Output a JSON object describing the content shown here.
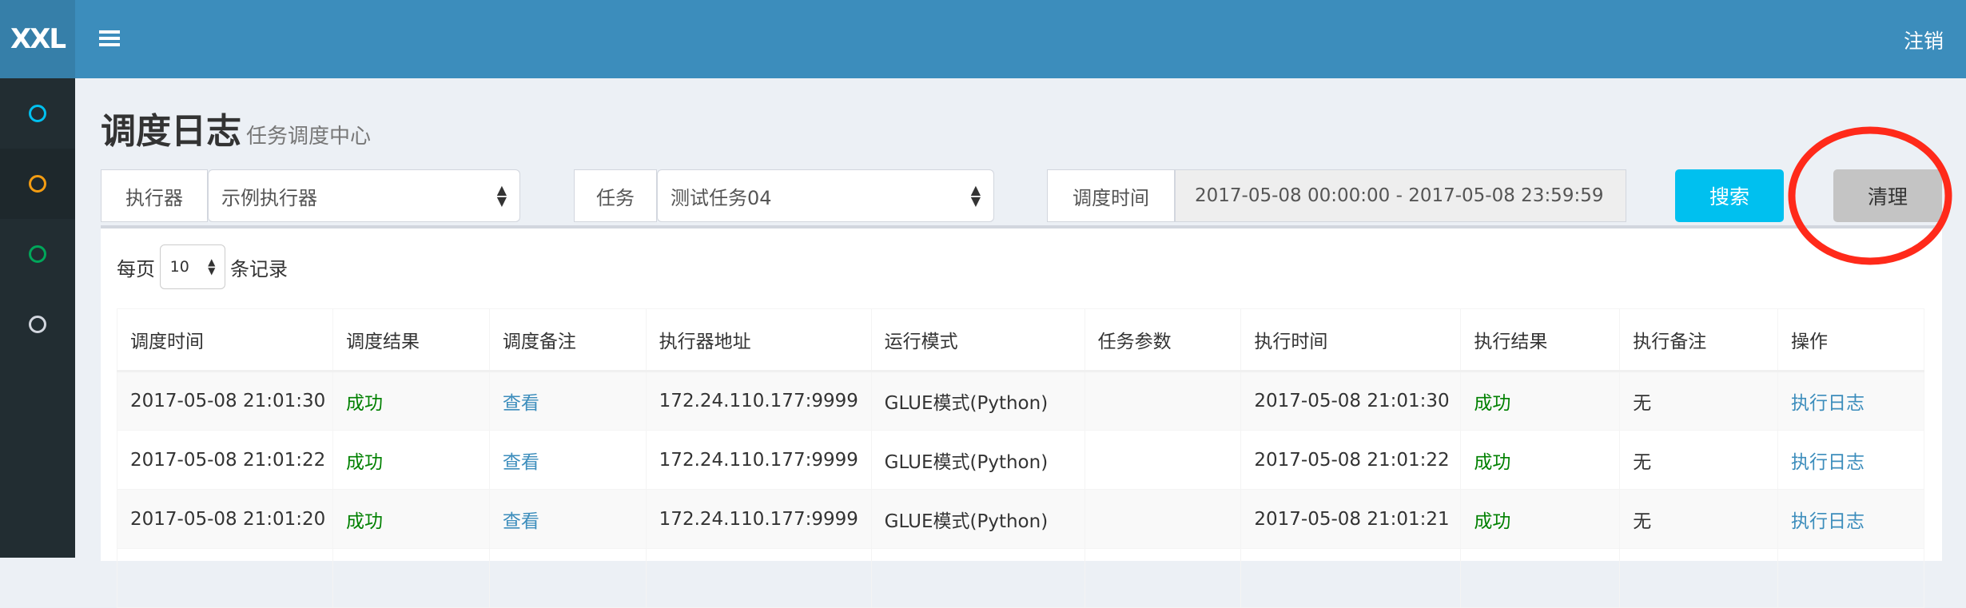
{
  "app": {
    "logo": "XXL",
    "logout": "注销"
  },
  "sidebar": {
    "items": [
      {
        "icon": "circle-icon",
        "color": "#00c0ef"
      },
      {
        "icon": "circle-icon",
        "color": "#f39c12"
      },
      {
        "icon": "circle-icon",
        "color": "#00a65a"
      },
      {
        "icon": "circle-icon",
        "color": "#d2d6de"
      }
    ]
  },
  "page": {
    "title": "调度日志",
    "subtitle": "任务调度中心"
  },
  "filters": {
    "executor_label": "执行器",
    "executor_value": "示例执行器",
    "job_label": "任务",
    "job_value": "测试任务04",
    "time_label": "调度时间",
    "time_value": "2017-05-08 00:00:00 - 2017-05-08 23:59:59",
    "search": "搜索",
    "clear": "清理"
  },
  "page_length": {
    "prefix": "每页",
    "value": "10",
    "suffix": "条记录"
  },
  "table": {
    "columns": [
      "调度时间",
      "调度结果",
      "调度备注",
      "执行器地址",
      "运行模式",
      "任务参数",
      "执行时间",
      "执行结果",
      "执行备注",
      "操作"
    ],
    "rows": [
      [
        "2017-05-08 21:01:30",
        "成功",
        "查看",
        "172.24.110.177:9999",
        "GLUE模式(Python)",
        "",
        "2017-05-08 21:01:30",
        "成功",
        "无",
        "执行日志"
      ],
      [
        "2017-05-08 21:01:22",
        "成功",
        "查看",
        "172.24.110.177:9999",
        "GLUE模式(Python)",
        "",
        "2017-05-08 21:01:22",
        "成功",
        "无",
        "执行日志"
      ],
      [
        "2017-05-08 21:01:20",
        "成功",
        "查看",
        "172.24.110.177:9999",
        "GLUE模式(Python)",
        "",
        "2017-05-08 21:01:21",
        "成功",
        "无",
        "执行日志"
      ]
    ]
  },
  "colors": {
    "header": "#3c8dbc",
    "sidebar": "#222d32",
    "success": "#008000",
    "link": "#3c8dbc",
    "search": "#00c0ef",
    "annotation": "#ff2a1a"
  }
}
